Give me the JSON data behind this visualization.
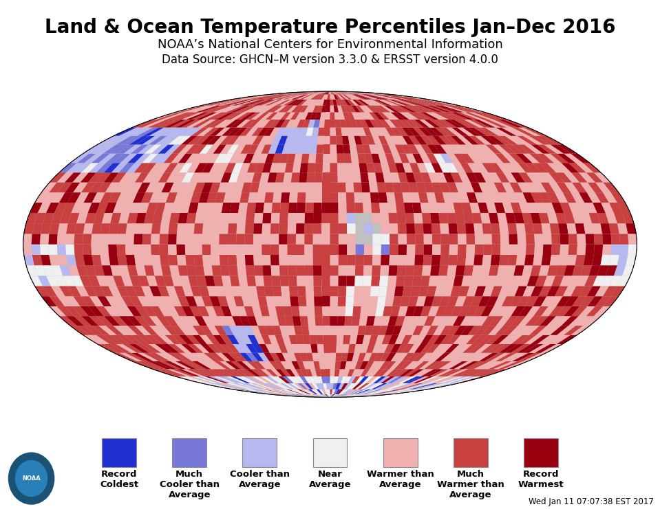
{
  "title": "Land & Ocean Temperature Percentiles Jan–Dec 2016",
  "subtitle": "NOAA’s National Centers for Environmental Information",
  "datasource": "Data Source: GHCN–M version 3.3.0 & ERSST version 4.0.0",
  "timestamp": "Wed Jan 11 07:07:38 EST 2017",
  "background_color": "#ffffff",
  "ocean_color": "#c0c0c0",
  "no_data_color": "#b8b8b8",
  "legend_items": [
    {
      "label": "Record\nColdest",
      "color": "#2030d0"
    },
    {
      "label": "Much\nCooler than\nAverage",
      "color": "#7878d8"
    },
    {
      "label": "Cooler than\nAverage",
      "color": "#b8b8f0"
    },
    {
      "label": "Near\nAverage",
      "color": "#f0f0f0"
    },
    {
      "label": "Warmer than\nAverage",
      "color": "#f0b0b0"
    },
    {
      "label": "Much\nWarmer than\nAverage",
      "color": "#c84040"
    },
    {
      "label": "Record\nWarmest",
      "color": "#980010"
    }
  ],
  "title_fontsize": 20,
  "subtitle_fontsize": 13,
  "source_fontsize": 12,
  "legend_fontsize": 10,
  "cat_colors": [
    "#2030d0",
    "#7878d8",
    "#b8b8f0",
    "#f0f0f0",
    "#f0b0b0",
    "#c84040",
    "#980010"
  ]
}
